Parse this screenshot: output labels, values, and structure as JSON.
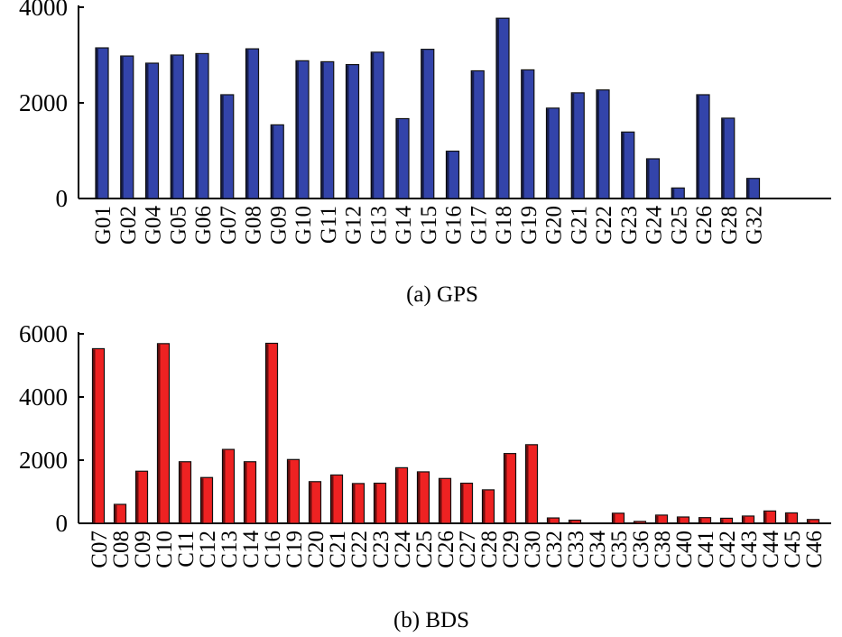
{
  "chart_data": [
    {
      "type": "bar",
      "caption": "(a) GPS",
      "categories": [
        "G01",
        "G02",
        "G04",
        "G05",
        "G06",
        "G07",
        "G08",
        "G09",
        "G10",
        "G11",
        "G12",
        "G13",
        "G14",
        "G15",
        "G16",
        "G17",
        "G18",
        "G19",
        "G20",
        "G21",
        "G22",
        "G23",
        "G24",
        "G25",
        "G26",
        "G28",
        "G32"
      ],
      "values": [
        3150,
        2980,
        2830,
        3000,
        3030,
        2170,
        3130,
        1540,
        2880,
        2860,
        2800,
        3060,
        1670,
        3120,
        990,
        2670,
        3770,
        2690,
        1890,
        2210,
        2270,
        1390,
        830,
        220,
        2170,
        1680,
        420
      ],
      "ylim": [
        0,
        4000
      ],
      "yticks": [
        "0",
        "2000",
        "4000"
      ],
      "ytick_values": [
        0,
        2000,
        4000
      ],
      "xlabel": "",
      "ylabel": "",
      "bar_color": "#3344aa"
    },
    {
      "type": "bar",
      "caption": "(b) BDS",
      "categories": [
        "C07",
        "C08",
        "C09",
        "C10",
        "C11",
        "C12",
        "C13",
        "C14",
        "C16",
        "C19",
        "C20",
        "C21",
        "C22",
        "C23",
        "C24",
        "C25",
        "C26",
        "C27",
        "C28",
        "C29",
        "C30",
        "C32",
        "C33",
        "C34",
        "C35",
        "C36",
        "C38",
        "C40",
        "C41",
        "C42",
        "C43",
        "C44",
        "C45",
        "C46"
      ],
      "values": [
        5530,
        600,
        1650,
        5690,
        1950,
        1450,
        2340,
        1950,
        5700,
        2020,
        1320,
        1530,
        1260,
        1270,
        1760,
        1630,
        1420,
        1270,
        1060,
        2210,
        2490,
        170,
        100,
        0,
        320,
        60,
        260,
        200,
        180,
        160,
        230,
        390,
        330,
        120
      ],
      "ylim": [
        0,
        6000
      ],
      "yticks": [
        "0",
        "2000",
        "4000",
        "6000"
      ],
      "ytick_values": [
        0,
        2000,
        4000,
        6000
      ],
      "xlabel": "",
      "ylabel": "",
      "bar_color": "#ee2222"
    }
  ]
}
